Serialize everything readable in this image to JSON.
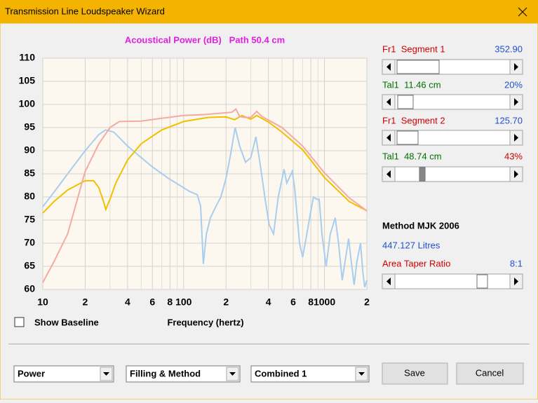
{
  "window": {
    "title": "Transmission Line Loudspeaker Wizard"
  },
  "chart_data": {
    "type": "line",
    "title": "Acoustical Power (dB)   Path 50.4 cm",
    "x_label": "Frequency (hertz)",
    "xscale": "log",
    "xlim": [
      10,
      2000
    ],
    "ylim": [
      60,
      110
    ],
    "grid": true,
    "yticks": [
      60,
      65,
      70,
      75,
      80,
      85,
      90,
      95,
      100,
      105,
      110
    ],
    "xticks": [
      10,
      {
        "value": 20,
        "label": "2"
      },
      {
        "value": 40,
        "label": "4"
      },
      {
        "value": 60,
        "label": "6"
      },
      {
        "value": 80,
        "label": "8"
      },
      100,
      {
        "value": 200,
        "label": "2"
      },
      {
        "value": 400,
        "label": "4"
      },
      {
        "value": 600,
        "label": "6"
      },
      {
        "value": 800,
        "label": "8"
      },
      1000,
      {
        "value": 2000,
        "label": "2"
      }
    ],
    "xminorticks": [
      30,
      50,
      70,
      90,
      300,
      500,
      700,
      900
    ],
    "series": [
      {
        "color": "#a8cdf0",
        "x": [
          10,
          12,
          15,
          20,
          25,
          28,
          32,
          40,
          50,
          60,
          78,
          100,
          110,
          125,
          132,
          138,
          145,
          155,
          170,
          184,
          200,
          215,
          232,
          250,
          275,
          300,
          326,
          350,
          379,
          405,
          435,
          470,
          517,
          540,
          560,
          590,
          614,
          640,
          665,
          700,
          745,
          790,
          836,
          880,
          917,
          960,
          1028,
          1100,
          1193,
          1260,
          1338,
          1400,
          1484,
          1550,
          1625,
          1700,
          1803,
          1870,
          1931,
          2000
        ],
        "values": [
          77.9,
          81,
          85,
          90,
          93.5,
          94.5,
          94,
          91,
          88.5,
          86.5,
          84,
          82,
          81.2,
          80.5,
          78,
          65.5,
          72,
          75.5,
          78,
          80,
          84,
          89,
          95,
          91,
          87.5,
          88.5,
          93,
          87,
          79.5,
          74,
          72,
          80,
          86,
          83,
          84,
          85.5,
          82,
          76,
          70,
          67,
          71.5,
          76,
          80,
          79.5,
          79.5,
          72,
          65,
          72,
          75.5,
          70,
          62,
          66,
          71,
          66,
          61,
          66,
          70,
          64,
          60.5,
          62
        ]
      },
      {
        "color": "#f0c000",
        "x": [
          10,
          12,
          15,
          20,
          23,
          25,
          27,
          28,
          30,
          33,
          40,
          50,
          70,
          100,
          150,
          200,
          230,
          260,
          300,
          330,
          400,
          500,
          700,
          1000,
          1500,
          2000
        ],
        "values": [
          76.5,
          79,
          81.5,
          83.5,
          83.5,
          82,
          79,
          77.3,
          79.5,
          83,
          88,
          91.5,
          94.5,
          96.3,
          97.2,
          97.3,
          96.7,
          97.6,
          96.8,
          97.6,
          96.2,
          94,
          90.2,
          84.2,
          79,
          77
        ]
      },
      {
        "color": "#f4aaa4",
        "x": [
          10,
          12,
          15,
          20,
          25,
          30,
          35,
          50,
          70,
          100,
          140,
          200,
          220,
          235,
          250,
          270,
          300,
          330,
          360,
          400,
          500,
          700,
          1000,
          1500,
          2000
        ],
        "values": [
          61.5,
          66,
          72,
          85.5,
          91.5,
          95,
          96.3,
          96.4,
          97,
          97.6,
          97.8,
          98.2,
          98.3,
          99,
          97.4,
          97.2,
          97.2,
          98.5,
          97.4,
          96.6,
          95,
          91,
          85.2,
          79.8,
          77
        ]
      }
    ]
  },
  "panel": {
    "rows": [
      {
        "label": "Fr1  Segment 1",
        "value": "352.90"
      },
      {
        "label": "Tal1  11.46 cm",
        "value": "20%"
      },
      {
        "label": "Fr1  Segment 2",
        "value": "125.70"
      },
      {
        "label": "Tal1  48.74 cm",
        "value": "43%"
      }
    ],
    "method": "Method MJK 2006",
    "volume": "447.127 Litres",
    "taper_label": "Area Taper Ratio",
    "taper_value": "8:1"
  },
  "controls": {
    "show_baseline": "Show Baseline",
    "dropdowns": [
      "Power",
      "Filling & Method",
      "Combined 1"
    ],
    "buttons": [
      "Save",
      "Cancel"
    ]
  }
}
